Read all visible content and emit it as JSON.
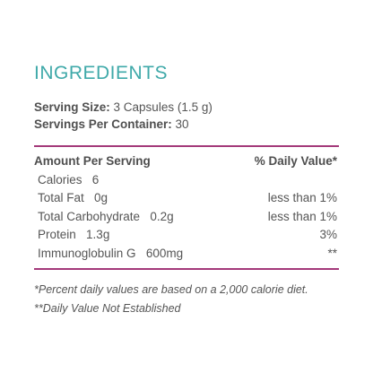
{
  "heading": "INGREDIENTS",
  "serving": {
    "size_label": "Serving Size:",
    "size_value": " 3 Capsules (1.5 g)",
    "per_container_label": "Servings Per Container:",
    "per_container_value": " 30"
  },
  "table": {
    "header_amount": "Amount Per Serving",
    "header_daily": "% Daily Value*",
    "rows": [
      {
        "name": "Calories",
        "amount": "6",
        "daily": ""
      },
      {
        "name": "Total Fat",
        "amount": "0g",
        "daily": "less than 1%"
      },
      {
        "name": "Total Carbohydrate",
        "amount": "0.2g",
        "daily": "less than 1%"
      },
      {
        "name": "Protein",
        "amount": "1.3g",
        "daily": "3%"
      },
      {
        "name": "Immunoglobulin G",
        "amount": "600mg",
        "daily": "**"
      }
    ]
  },
  "footnotes": {
    "note1": "*Percent daily values are based on a 2,000 calorie diet.",
    "note2": "**Daily Value Not Established"
  },
  "colors": {
    "heading": "#3fa9a9",
    "rule": "#a4397a",
    "text": "#555555"
  }
}
